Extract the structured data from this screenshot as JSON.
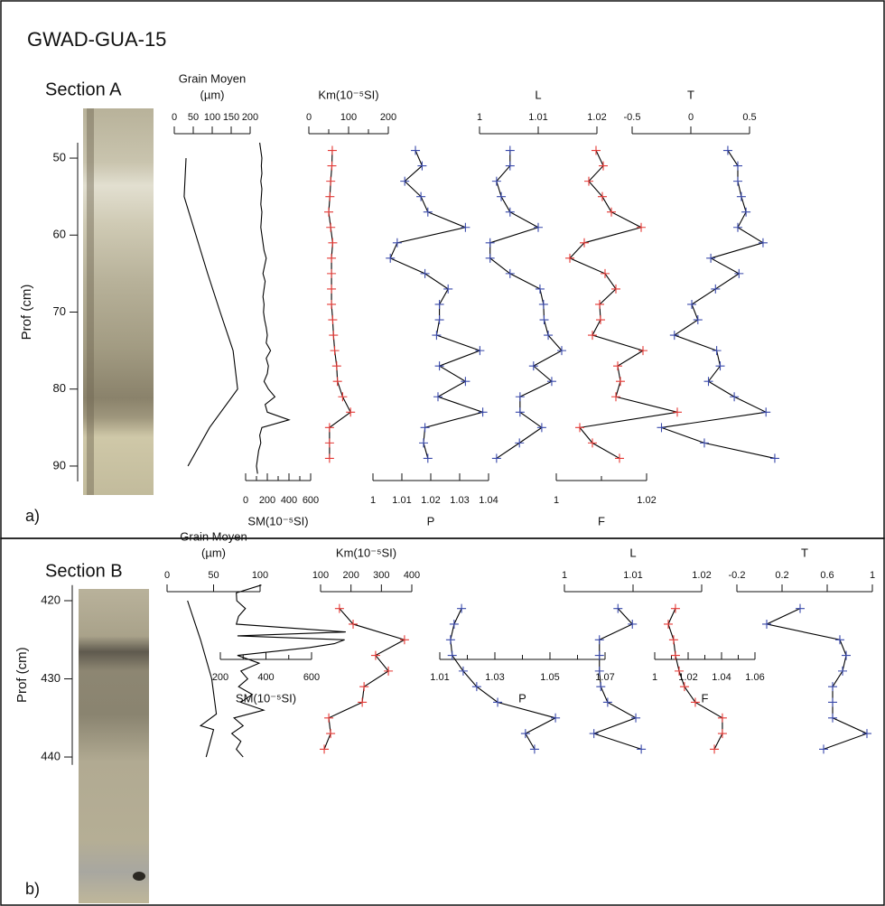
{
  "title": "GWAD-GUA-15",
  "chart_data": [
    {
      "type": "depth_profile",
      "title": "Section A",
      "panel_label": "a)",
      "ylabel": "Prof (cm)",
      "ylim": [
        48,
        92
      ],
      "yticks": [
        50,
        60,
        70,
        80,
        90
      ],
      "y_inverted": true,
      "tracks": [
        {
          "label": [
            "Grain Moyen",
            "(µm)"
          ],
          "axis": "top",
          "xlim": [
            0,
            200
          ],
          "xticks": [
            0,
            50,
            100,
            150,
            200
          ],
          "line_color": "#000000",
          "markers": false,
          "depth": [
            50,
            55,
            60,
            65,
            70,
            75,
            80,
            85,
            90
          ],
          "values": [
            31,
            26,
            57,
            88,
            121,
            155,
            167,
            93,
            36
          ]
        },
        {
          "label": [
            "SM(10⁻⁵SI)"
          ],
          "axis": "bottom",
          "xlim": [
            0,
            600
          ],
          "xticks": [
            0,
            200,
            400,
            600
          ],
          "minor_ticks": [
            100,
            300,
            500
          ],
          "line_color": "#000000",
          "markers": false,
          "depth": [
            48,
            49,
            50,
            51,
            52,
            53,
            54,
            55,
            56,
            57,
            58,
            59,
            60,
            61,
            62,
            63,
            64,
            65,
            66,
            67,
            68,
            69,
            70,
            71,
            72,
            73,
            74,
            75,
            76,
            77,
            78,
            79,
            80,
            81,
            82,
            83,
            84,
            85,
            86,
            87,
            88,
            89,
            90,
            91
          ],
          "values": [
            130,
            140,
            150,
            145,
            150,
            140,
            150,
            145,
            140,
            150,
            145,
            140,
            150,
            160,
            170,
            190,
            175,
            160,
            180,
            170,
            160,
            170,
            165,
            175,
            190,
            200,
            190,
            230,
            190,
            210,
            200,
            170,
            210,
            270,
            180,
            200,
            400,
            150,
            130,
            140,
            120,
            110,
            100,
            110
          ]
        },
        {
          "label": [
            "Km(10⁻⁵SI)"
          ],
          "axis": "top",
          "xlim": [
            0,
            200
          ],
          "xticks": [
            0,
            100,
            200
          ],
          "minor_ticks": [
            50,
            150
          ],
          "line_color": "#000000",
          "markers": true,
          "marker_color": "#e53935",
          "depth": [
            49,
            51,
            53,
            55,
            57,
            59,
            61,
            63,
            65,
            67,
            69,
            71,
            73,
            75,
            77,
            79,
            81,
            83,
            85,
            87,
            89
          ],
          "values": [
            59,
            58,
            55,
            53,
            50,
            55,
            60,
            57,
            57,
            57,
            57,
            60,
            62,
            65,
            70,
            72,
            85,
            105,
            52,
            52,
            52
          ]
        },
        {
          "label": [
            "P"
          ],
          "axis": "bottom",
          "xlim": [
            1,
            1.04
          ],
          "xticks": [
            1,
            1.01,
            1.02,
            1.03,
            1.04
          ],
          "line_color": "#000000",
          "markers": true,
          "marker_color": "#3949ab",
          "depth": [
            49,
            51,
            53,
            55,
            57,
            59,
            61,
            63,
            65,
            67,
            69,
            71,
            73,
            75,
            77,
            79,
            81,
            83,
            85,
            87,
            89
          ],
          "values": [
            1.0147,
            1.017,
            1.011,
            1.0166,
            1.019,
            1.032,
            1.0084,
            1.006,
            1.018,
            1.026,
            1.023,
            1.023,
            1.022,
            1.037,
            1.023,
            1.032,
            1.0225,
            1.038,
            1.018,
            1.0175,
            1.019
          ]
        },
        {
          "label": [
            "L"
          ],
          "axis": "top",
          "xlim": [
            1,
            1.02
          ],
          "xticks": [
            1,
            1.01,
            1.02
          ],
          "line_color": "#000000",
          "markers": true,
          "marker_color": "#3949ab",
          "depth": [
            49,
            51,
            53,
            55,
            57,
            59,
            61,
            63,
            65,
            67,
            69,
            71,
            73,
            75,
            77,
            79,
            81,
            83,
            85,
            87,
            89
          ],
          "values": [
            1.0052,
            1.0052,
            1.0029,
            1.0037,
            1.0052,
            1.01,
            1.0018,
            1.0018,
            1.0052,
            1.0103,
            1.0109,
            1.011,
            1.0117,
            1.014,
            1.0092,
            1.0123,
            1.0069,
            1.0069,
            1.0106,
            1.0068,
            1.0029
          ]
        },
        {
          "label": [
            "F"
          ],
          "axis": "bottom",
          "xlim": [
            1,
            1.02
          ],
          "xticks": [
            1,
            1.02
          ],
          "minor_ticks": [
            1.01
          ],
          "line_color": "#000000",
          "markers": true,
          "marker_color": "#e53935",
          "depth": [
            49,
            51,
            53,
            55,
            57,
            59,
            61,
            63,
            65,
            67,
            69,
            71,
            73,
            75,
            77,
            79,
            81,
            83,
            85,
            87,
            89
          ],
          "values": [
            1.0088,
            1.0104,
            1.0072,
            1.0102,
            1.0122,
            1.0188,
            1.0062,
            1.003,
            1.0108,
            1.0132,
            1.0096,
            1.0098,
            1.008,
            1.0192,
            1.0136,
            1.0142,
            1.0132,
            1.0268,
            1.0052,
            1.008,
            1.014
          ]
        },
        {
          "label": [
            "T"
          ],
          "axis": "top",
          "xlim": [
            -0.5,
            0.5
          ],
          "xticks": [
            -0.5,
            0,
            0.5
          ],
          "line_color": "#000000",
          "markers": true,
          "marker_color": "#3949ab",
          "depth": [
            49,
            51,
            53,
            55,
            57,
            59,
            61,
            63,
            65,
            67,
            69,
            71,
            73,
            75,
            77,
            79,
            81,
            83,
            85,
            87,
            89
          ],
          "values": [
            0.315,
            0.4,
            0.4,
            0.43,
            0.47,
            0.4,
            0.615,
            0.17,
            0.41,
            0.21,
            0.008,
            0.06,
            -0.14,
            0.22,
            0.25,
            0.15,
            0.37,
            0.64,
            -0.25,
            0.115,
            0.715
          ]
        }
      ]
    },
    {
      "type": "depth_profile",
      "title": "Section B",
      "panel_label": "b)",
      "ylabel": "Prof (cm)",
      "ylim": [
        418,
        441
      ],
      "yticks": [
        420,
        430,
        440
      ],
      "y_inverted": true,
      "tracks": [
        {
          "label": [
            "Grain Moyen",
            "(µm)"
          ],
          "axis": "top",
          "xlim": [
            0,
            100
          ],
          "xticks": [
            0,
            50,
            100
          ],
          "line_color": "#000000",
          "markers": false,
          "depth": [
            420,
            425,
            430,
            434.5,
            436,
            436.5,
            440
          ],
          "values": [
            22,
            36,
            48,
            53,
            36,
            50,
            42
          ]
        },
        {
          "label": [
            "SM(10⁻⁵SI)"
          ],
          "axis": "bottom",
          "xlim": [
            200,
            600
          ],
          "xticks": [
            200,
            400,
            600
          ],
          "minor_ticks": [
            300,
            500
          ],
          "line_color": "#000000",
          "markers": false,
          "depth": [
            418,
            419,
            420,
            421,
            422,
            423,
            424,
            424.5,
            425,
            425.5,
            426,
            427,
            428,
            429,
            430,
            431,
            432,
            433,
            434,
            435,
            436,
            437,
            438,
            439,
            440
          ],
          "values": [
            380,
            270,
            272,
            310,
            280,
            270,
            750,
            275,
            745,
            700,
            590,
            275,
            370,
            290,
            320,
            280,
            340,
            290,
            390,
            260,
            300,
            250,
            290,
            270,
            300
          ]
        },
        {
          "label": [
            "Km(10⁻⁵SI)"
          ],
          "axis": "top",
          "xlim": [
            100,
            400
          ],
          "xticks": [
            100,
            200,
            300,
            400
          ],
          "line_color": "#000000",
          "markers": true,
          "marker_color": "#e53935",
          "depth": [
            421,
            423,
            425,
            427,
            429,
            431,
            433,
            435,
            437,
            439
          ],
          "values": [
            162,
            207,
            376,
            281,
            323,
            243,
            237,
            127,
            133,
            112
          ]
        },
        {
          "label": [
            "P"
          ],
          "axis": "bottom",
          "xlim": [
            1.01,
            1.07
          ],
          "xticks": [
            1.01,
            1.03,
            1.05,
            1.07
          ],
          "minor_ticks": [
            1.02,
            1.04,
            1.06
          ],
          "line_color": "#000000",
          "markers": true,
          "marker_color": "#3949ab",
          "depth": [
            421,
            423,
            425,
            427,
            429,
            431,
            433,
            435,
            437,
            439
          ],
          "values": [
            1.0179,
            1.0152,
            1.0139,
            1.0145,
            1.0185,
            1.0234,
            1.031,
            1.052,
            1.0411,
            1.0444
          ]
        },
        {
          "label": [
            "L"
          ],
          "axis": "top",
          "xlim": [
            1,
            1.02
          ],
          "xticks": [
            1,
            1.01,
            1.02
          ],
          "line_color": "#000000",
          "markers": true,
          "marker_color": "#3949ab",
          "depth": [
            421,
            423,
            425,
            427,
            429,
            431,
            433,
            435,
            437,
            439
          ],
          "values": [
            1.0078,
            1.0099,
            1.0051,
            1.0051,
            1.0051,
            1.0053,
            1.0063,
            1.0104,
            1.0043,
            1.0112
          ]
        },
        {
          "label": [
            "F"
          ],
          "axis": "bottom",
          "xlim": [
            1,
            1.06
          ],
          "xticks": [
            1,
            1.02,
            1.04,
            1.06
          ],
          "minor_ticks": [
            1.01,
            1.03,
            1.05
          ],
          "line_color": "#000000",
          "markers": true,
          "marker_color": "#e53935",
          "depth": [
            421,
            423,
            425,
            427,
            429,
            431,
            433,
            435,
            437,
            439
          ],
          "values": [
            1.0124,
            1.0081,
            1.0113,
            1.0124,
            1.0146,
            1.0178,
            1.0243,
            1.0405,
            1.0405,
            1.0357
          ]
        },
        {
          "label": [
            "T"
          ],
          "axis": "top",
          "xlim": [
            -0.2,
            1
          ],
          "xticks": [
            -0.2,
            0.2,
            0.6,
            1
          ],
          "line_color": "#000000",
          "markers": true,
          "marker_color": "#3949ab",
          "depth": [
            421,
            423,
            425,
            427,
            429,
            431,
            433,
            435,
            437,
            439
          ],
          "values": [
            0.36,
            0.064,
            0.712,
            0.768,
            0.736,
            0.648,
            0.648,
            0.648,
            0.952,
            0.568
          ]
        }
      ]
    }
  ]
}
